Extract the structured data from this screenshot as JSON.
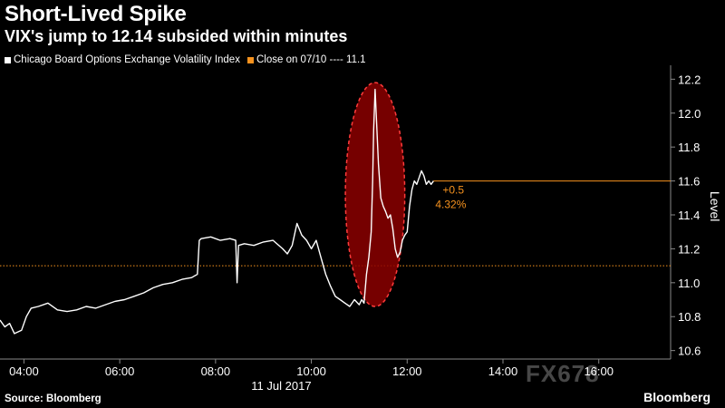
{
  "header": {
    "title": "Short-Lived Spike",
    "subtitle": "VIX's jump to 12.14 subsided within minutes"
  },
  "legend": {
    "series_label": "Chicago Board Options Exchange Volatility Index",
    "close_label": "Close on 07/10 ---- 11.1"
  },
  "footer": {
    "source": "Source: Bloomberg",
    "brand": "Bloomberg",
    "watermark": "FX678"
  },
  "colors": {
    "background": "#000000",
    "line": "#ffffff",
    "close_line": "#f6921e",
    "highlight_fill": "#8b0000",
    "highlight_stroke": "#ff3b3b"
  },
  "chart_data": {
    "type": "line",
    "ylabel": "Level",
    "xlabel": "11 Jul 2017",
    "ylim": [
      10.55,
      12.25
    ],
    "yticks": [
      "10.6",
      "10.8",
      "11.0",
      "11.2",
      "11.4",
      "11.6",
      "11.8",
      "12.0",
      "12.2"
    ],
    "xlim": [
      3.5,
      17.5
    ],
    "xticks": [
      {
        "value": 4,
        "label": "04:00"
      },
      {
        "value": 6,
        "label": "06:00"
      },
      {
        "value": 8,
        "label": "08:00"
      },
      {
        "value": 10,
        "label": "10:00"
      },
      {
        "value": 12,
        "label": "12:00"
      },
      {
        "value": 14,
        "label": "14:00"
      },
      {
        "value": 16,
        "label": "16:00"
      }
    ],
    "reference_line": {
      "name": "Close on 07/10",
      "value": 11.1
    },
    "last_value_line": 11.6,
    "annotation": {
      "change": "+0.5",
      "pct": "4.32%"
    },
    "highlight": {
      "x_center": 11.33,
      "y_center": 11.52,
      "x_radius": 0.62,
      "y_radius": 0.66
    },
    "series": [
      {
        "name": "Chicago Board Options Exchange Volatility Index",
        "x": [
          3.5,
          3.6,
          3.7,
          3.8,
          3.95,
          4.05,
          4.15,
          4.3,
          4.5,
          4.7,
          4.9,
          5.1,
          5.3,
          5.5,
          5.7,
          5.9,
          6.1,
          6.3,
          6.5,
          6.7,
          6.9,
          7.1,
          7.3,
          7.5,
          7.62,
          7.66,
          7.7,
          7.9,
          8.1,
          8.3,
          8.42,
          8.45,
          8.48,
          8.6,
          8.8,
          9.0,
          9.2,
          9.4,
          9.5,
          9.6,
          9.7,
          9.8,
          9.9,
          10.0,
          10.1,
          10.2,
          10.3,
          10.4,
          10.5,
          10.6,
          10.7,
          10.8,
          10.9,
          11.0,
          11.05,
          11.1,
          11.15,
          11.2,
          11.25,
          11.28,
          11.3,
          11.33,
          11.36,
          11.4,
          11.45,
          11.5,
          11.55,
          11.6,
          11.65,
          11.7,
          11.75,
          11.8,
          11.85,
          11.9,
          11.95,
          12.0,
          12.05,
          12.1,
          12.15,
          12.2,
          12.25,
          12.3,
          12.35,
          12.4,
          12.45,
          12.5,
          12.55
        ],
        "values": [
          10.78,
          10.74,
          10.76,
          10.7,
          10.72,
          10.8,
          10.85,
          10.86,
          10.88,
          10.84,
          10.83,
          10.84,
          10.86,
          10.85,
          10.87,
          10.89,
          10.9,
          10.92,
          10.94,
          10.97,
          10.99,
          11.0,
          11.02,
          11.03,
          11.05,
          11.25,
          11.26,
          11.27,
          11.25,
          11.26,
          11.25,
          11.0,
          11.22,
          11.23,
          11.22,
          11.24,
          11.25,
          11.2,
          11.17,
          11.22,
          11.35,
          11.28,
          11.25,
          11.2,
          11.25,
          11.15,
          11.05,
          10.98,
          10.92,
          10.9,
          10.88,
          10.86,
          10.9,
          10.87,
          10.9,
          10.88,
          11.05,
          11.15,
          11.3,
          11.6,
          11.9,
          12.14,
          11.95,
          11.7,
          11.5,
          11.45,
          11.42,
          11.38,
          11.4,
          11.32,
          11.2,
          11.15,
          11.18,
          11.25,
          11.28,
          11.3,
          11.45,
          11.55,
          11.6,
          11.58,
          11.62,
          11.66,
          11.63,
          11.58,
          11.6,
          11.58,
          11.6
        ]
      }
    ]
  }
}
